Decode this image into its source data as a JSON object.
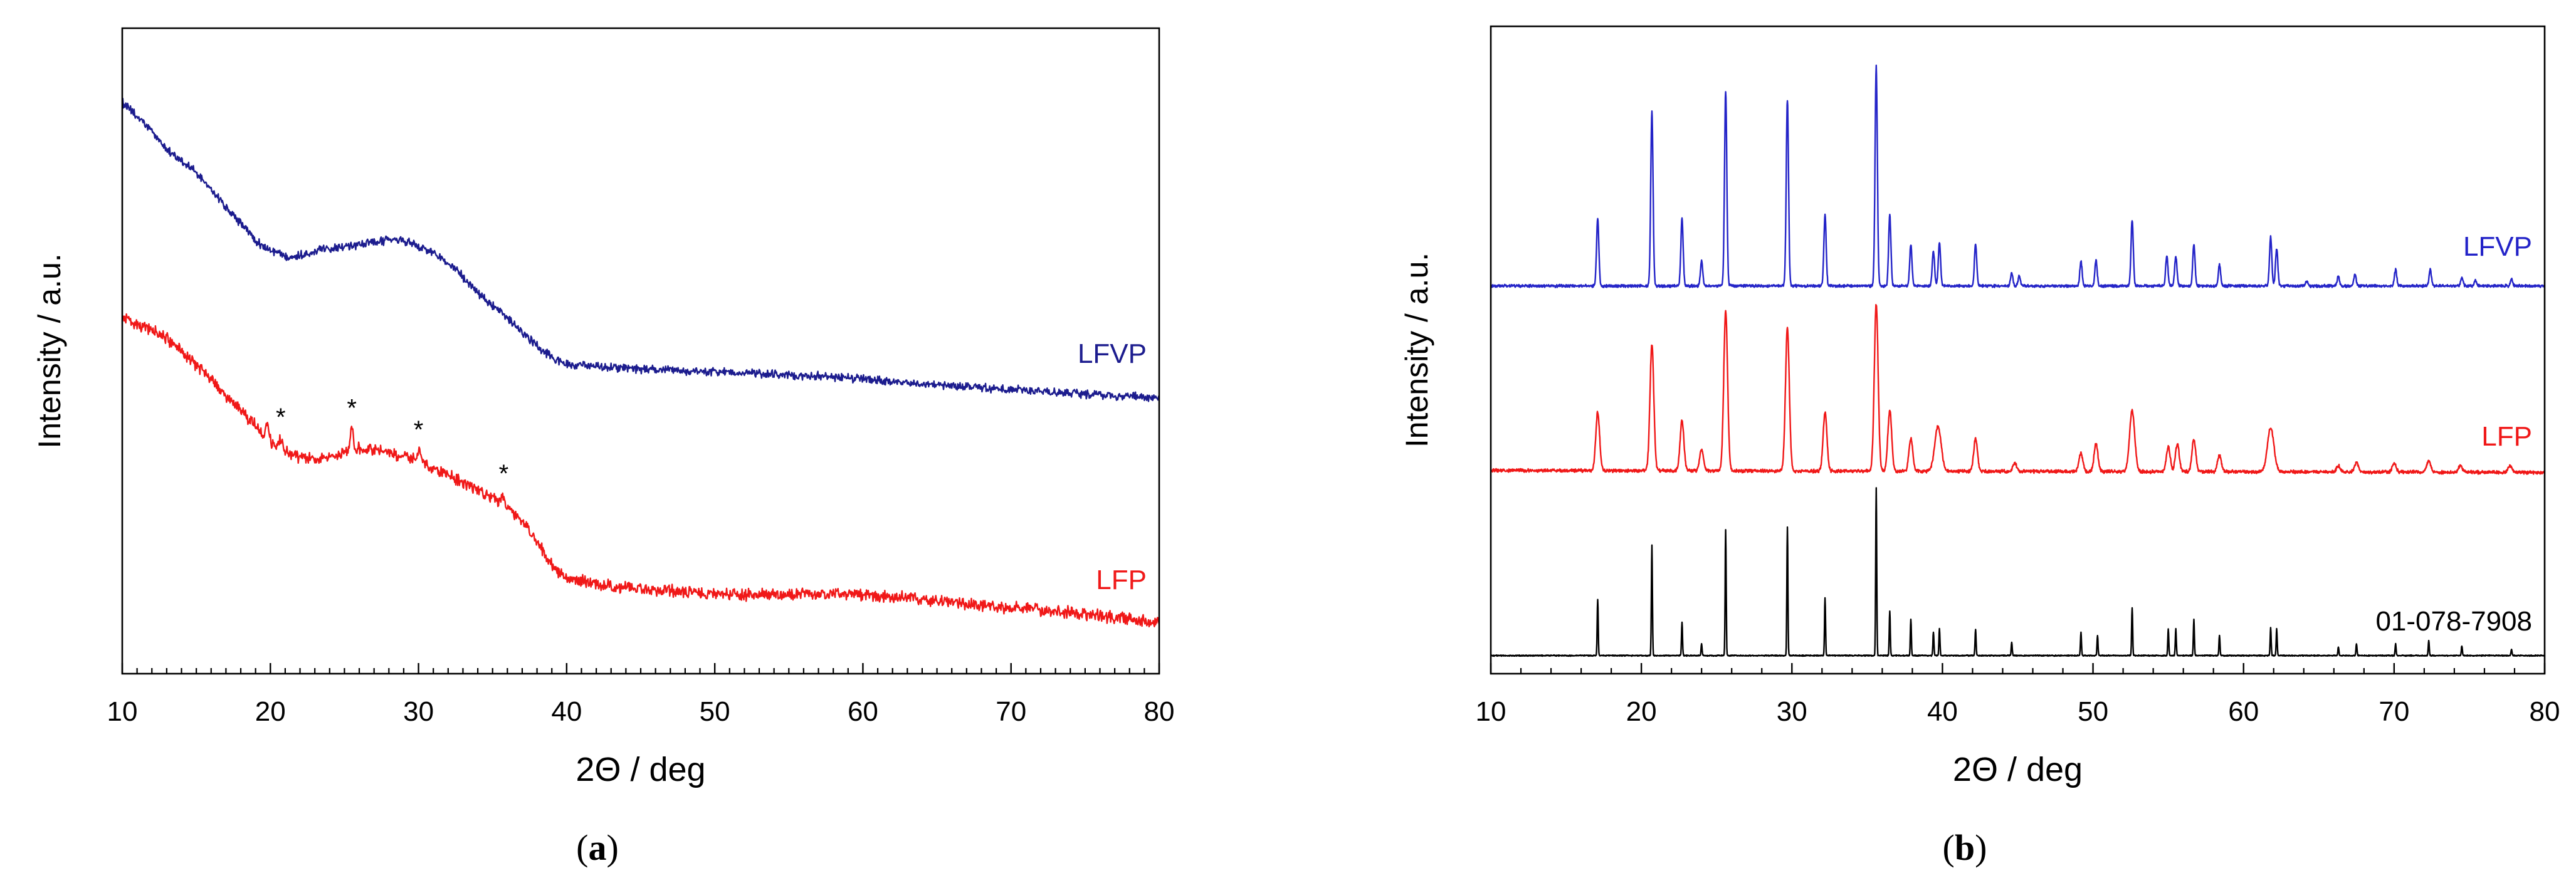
{
  "chart_data": [
    {
      "type": "line",
      "panel_label": "(a)",
      "xlabel": "2Θ / deg",
      "ylabel": "Intensity / a.u.",
      "xlim": [
        10,
        80
      ],
      "x_ticks": [
        10,
        20,
        30,
        40,
        50,
        60,
        70,
        80
      ],
      "ylim": [
        0,
        100
      ],
      "series": [
        {
          "name": "LFVP",
          "color": "#1c1c8e",
          "baseline": {
            "x": [
              10,
              12,
              13,
              15,
              17.5,
              18.5,
              19.5,
              21.5,
              23.5,
              26.5,
              28.5,
              30,
              32,
              34,
              36.5,
              38.5,
              40,
              42,
              46,
              57.5,
              68.5,
              80
            ],
            "y": [
              88.5,
              84.0,
              81.3,
              77.5,
              71.0,
              68.5,
              66.2,
              64.7,
              65.8,
              66.6,
              67.2,
              66.2,
              63.7,
              59.0,
              54.0,
              49.9,
              48.0,
              47.6,
              47.1,
              46.0,
              44.2,
              42.7
            ]
          },
          "peak_width": 0.25,
          "peaks": [],
          "noise": 0.8
        },
        {
          "name": "LFP",
          "color": "#f01818",
          "baseline": {
            "x": [
              10,
              13,
              15,
              17.5,
              19,
              20,
              22,
              24,
              25.7,
              28.5,
              30.2,
              32,
              34,
              35.7,
              37.4,
              38.5,
              39.7,
              41,
              44,
              52,
              59.7,
              68.5,
              74,
              80
            ],
            "y": [
              55.2,
              51.9,
              47.8,
              42.0,
              38.4,
              35.9,
              33.4,
              33.5,
              34.8,
              34.0,
              32.7,
              30.8,
              28.4,
              26.3,
              22.5,
              18.7,
              15.3,
              14.3,
              13.3,
              12.3,
              12.3,
              10.5,
              9.5,
              7.9
            ]
          },
          "peak_width": 0.25,
          "peaks": [
            [
              19.8,
              2.5
            ],
            [
              20.7,
              1.5
            ],
            [
              25.5,
              3.0
            ],
            [
              30.0,
              1.5
            ],
            [
              35.7,
              1.5
            ]
          ],
          "noise": 1.1,
          "markers": {
            "symbol": "*",
            "x": [
              20.7,
              25.5,
              30.0,
              35.75
            ]
          }
        }
      ]
    },
    {
      "type": "line",
      "panel_label": "(b)",
      "xlabel": "2Θ / deg",
      "ylabel": "Intensity / a.u.",
      "xlim": [
        10,
        80
      ],
      "x_ticks": [
        10,
        20,
        30,
        40,
        50,
        60,
        70,
        80
      ],
      "ylim": [
        0,
        100
      ],
      "series": [
        {
          "name": "LFVP",
          "color": "#2424c8",
          "baseline": {
            "x": [
              10,
              80
            ],
            "y": [
              59.9,
              59.9
            ]
          },
          "peak_width": 0.18,
          "peaks": [
            [
              17.1,
              10.5
            ],
            [
              20.7,
              27.0
            ],
            [
              22.7,
              10.5
            ],
            [
              24.0,
              3.8
            ],
            [
              25.6,
              30.0
            ],
            [
              29.7,
              28.8
            ],
            [
              32.2,
              11.0
            ],
            [
              35.6,
              33.9
            ],
            [
              36.5,
              11.0
            ],
            [
              37.9,
              6.4
            ],
            [
              39.4,
              5.4
            ],
            [
              39.8,
              6.6
            ],
            [
              42.2,
              6.4
            ],
            [
              44.6,
              2.0
            ],
            [
              45.1,
              1.5
            ],
            [
              49.2,
              3.8
            ],
            [
              50.2,
              4.0
            ],
            [
              52.6,
              10.2
            ],
            [
              54.9,
              4.6
            ],
            [
              55.5,
              4.6
            ],
            [
              56.7,
              6.4
            ],
            [
              58.4,
              3.3
            ],
            [
              61.8,
              7.6
            ],
            [
              62.2,
              5.8
            ],
            [
              64.2,
              0.8
            ],
            [
              66.3,
              1.5
            ],
            [
              67.4,
              1.8
            ],
            [
              70.1,
              2.5
            ],
            [
              72.4,
              2.5
            ],
            [
              74.5,
              1.3
            ],
            [
              75.4,
              0.8
            ],
            [
              77.8,
              1.0
            ]
          ],
          "noise": 0.25
        },
        {
          "name": "LFP",
          "color": "#f01818",
          "baseline": {
            "x": [
              10,
              80
            ],
            "y": [
              31.4,
              31.1
            ]
          },
          "peak_width": 0.3,
          "peaks": [
            [
              17.1,
              9.0
            ],
            [
              20.7,
              19.6
            ],
            [
              22.7,
              7.7
            ],
            [
              24.0,
              3.3
            ],
            [
              25.6,
              24.7
            ],
            [
              29.7,
              22.0
            ],
            [
              32.2,
              9.0
            ],
            [
              35.6,
              25.8
            ],
            [
              36.5,
              9.4
            ],
            [
              37.9,
              5.0
            ],
            [
              39.7,
              6.9,
              0.5
            ],
            [
              42.2,
              5.0
            ],
            [
              44.8,
              1.3
            ],
            [
              49.2,
              2.8
            ],
            [
              50.2,
              4.3
            ],
            [
              52.6,
              9.4,
              0.4
            ],
            [
              55.0,
              3.8
            ],
            [
              55.6,
              4.3
            ],
            [
              56.7,
              5.0
            ],
            [
              58.4,
              2.5
            ],
            [
              61.8,
              6.9,
              0.5
            ],
            [
              66.3,
              1.0
            ],
            [
              67.5,
              1.5
            ],
            [
              70.0,
              1.3
            ],
            [
              72.3,
              1.8
            ],
            [
              74.4,
              1.0
            ],
            [
              77.7,
              1.0
            ]
          ],
          "noise": 0.3
        },
        {
          "name": "01-078-7908",
          "color": "#000000",
          "baseline": {
            "x": [
              10,
              80
            ],
            "y": [
              2.8,
              2.8
            ]
          },
          "peak_width": 0.08,
          "peaks": [
            [
              17.1,
              8.7
            ],
            [
              20.7,
              17.1
            ],
            [
              22.7,
              5.1
            ],
            [
              24.0,
              1.8
            ],
            [
              25.6,
              19.4
            ],
            [
              29.7,
              19.9
            ],
            [
              32.2,
              8.9
            ],
            [
              35.6,
              26.0
            ],
            [
              36.5,
              6.9
            ],
            [
              37.9,
              5.6
            ],
            [
              39.4,
              3.6
            ],
            [
              39.8,
              4.1
            ],
            [
              42.2,
              4.1
            ],
            [
              44.6,
              2.0
            ],
            [
              49.2,
              3.6
            ],
            [
              50.3,
              3.1
            ],
            [
              52.6,
              7.4
            ],
            [
              55.0,
              4.1
            ],
            [
              55.5,
              4.1
            ],
            [
              56.7,
              5.6
            ],
            [
              58.4,
              3.1
            ],
            [
              61.8,
              4.3
            ],
            [
              62.2,
              4.1
            ],
            [
              66.3,
              1.3
            ],
            [
              67.5,
              1.8
            ],
            [
              70.1,
              1.8
            ],
            [
              72.3,
              2.3
            ],
            [
              74.5,
              1.5
            ],
            [
              77.8,
              1.0
            ]
          ],
          "noise": 0.1
        }
      ]
    }
  ]
}
